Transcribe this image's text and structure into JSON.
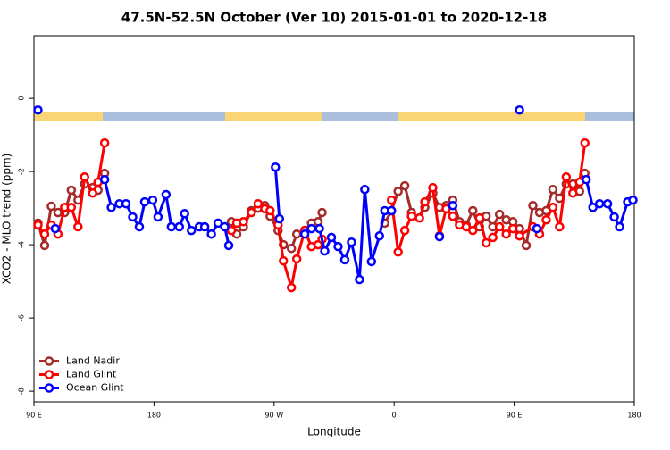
{
  "chart_data": {
    "type": "line",
    "title": "47.5N-52.5N October (Ver 10)   2015-01-01 to 2020-12-18",
    "x_label": "Longitude",
    "y_label": "XCO2 - MLO trend (ppm)",
    "xlim": [
      90,
      540
    ],
    "ylim": [
      1.71,
      -8.29
    ],
    "xticks": [
      {
        "value": 90,
        "label": "90 E"
      },
      180,
      {
        "value": 270,
        "label": "90 W"
      },
      {
        "value": 360,
        "label": "0"
      },
      {
        "value": 450,
        "label": "90 E"
      },
      {
        "value": 540,
        "label": "180"
      }
    ],
    "yticks": [
      0,
      -2,
      -4,
      -6,
      -8
    ],
    "legend": "bottomleft",
    "series": [
      {
        "name": "Land Nadir",
        "color": "#a52a2a",
        "x": [
          93,
          98,
          103,
          108,
          113,
          118,
          123,
          128,
          134,
          138,
          143,
          null,
          238,
          242,
          247,
          253,
          258,
          263,
          267,
          273,
          277,
          283,
          287,
          293,
          298,
          303,
          306,
          null,
          353,
          358,
          363,
          368,
          373,
          379,
          383,
          389,
          394,
          399,
          404,
          409,
          414,
          419,
          424,
          429,
          434,
          439,
          444,
          449,
          454,
          459,
          464,
          469,
          474,
          479,
          484,
          489,
          494,
          499,
          503
        ],
        "values": [
          -3.41,
          -4.02,
          -2.95,
          -3.12,
          -3.12,
          -2.51,
          -2.78,
          -2.34,
          -2.44,
          -2.51,
          -2.05,
          null,
          -3.37,
          -3.71,
          -3.51,
          -3.07,
          -3.0,
          -2.93,
          -3.22,
          -3.61,
          -4.0,
          -4.1,
          -3.71,
          -3.61,
          -3.41,
          -3.37,
          -3.12,
          null,
          -3.41,
          -3.07,
          -2.54,
          -2.39,
          -3.12,
          -3.27,
          -2.98,
          -2.59,
          -2.98,
          -2.93,
          -2.78,
          -3.37,
          -3.46,
          -3.07,
          -3.51,
          -3.22,
          -3.51,
          -3.17,
          -3.32,
          -3.37,
          -3.56,
          -4.02,
          -2.93,
          -3.12,
          -3.07,
          -2.49,
          -2.73,
          -2.34,
          -2.34,
          -2.54,
          -2.05
        ]
      },
      {
        "name": "Land Glint",
        "color": "#ff0000",
        "x": [
          93,
          98,
          103,
          108,
          113,
          118,
          123,
          128,
          134,
          138,
          143,
          null,
          238,
          242,
          247,
          253,
          258,
          263,
          267,
          273,
          277,
          283,
          287,
          293,
          298,
          303,
          306,
          null,
          358,
          363,
          368,
          373,
          379,
          383,
          389,
          394,
          399,
          404,
          409,
          414,
          419,
          424,
          429,
          434,
          439,
          444,
          449,
          454,
          464,
          469,
          474,
          479,
          484,
          489,
          494,
          499,
          503
        ],
        "values": [
          -3.46,
          -3.71,
          -3.46,
          -3.71,
          -2.98,
          -2.98,
          -3.51,
          -2.15,
          -2.59,
          -2.29,
          -1.22,
          null,
          -3.61,
          -3.41,
          -3.37,
          -3.12,
          -2.88,
          -3.02,
          -3.07,
          -3.46,
          -4.44,
          -5.17,
          -4.39,
          -3.61,
          -4.05,
          -4.0,
          -3.85,
          null,
          -2.78,
          -4.2,
          -3.61,
          -3.22,
          -3.27,
          -2.83,
          -2.44,
          -3.76,
          -3.02,
          -3.22,
          -3.46,
          -3.51,
          -3.61,
          -3.27,
          -3.95,
          -3.8,
          -3.51,
          -3.71,
          -3.56,
          -3.76,
          -3.51,
          -3.71,
          -3.32,
          -2.98,
          -3.51,
          -2.15,
          -2.59,
          -2.29,
          -1.22
        ]
      },
      {
        "name": "Ocean Glint",
        "color": "#0000ff",
        "x": [
          93,
          null,
          106,
          null,
          143,
          148,
          154,
          159,
          164,
          169,
          173,
          179,
          183,
          189,
          193,
          199,
          203,
          208,
          214,
          218,
          223,
          228,
          233,
          236,
          null,
          271,
          274,
          null,
          293,
          298,
          304,
          308,
          313,
          318,
          323,
          328,
          334,
          338,
          343,
          349,
          353,
          358,
          null,
          394,
          null,
          404,
          null,
          454,
          null,
          467,
          null,
          504,
          509,
          514,
          520,
          525,
          529,
          535,
          539
        ],
        "values": [
          -0.32,
          null,
          -3.56,
          null,
          -2.22,
          -2.98,
          -2.88,
          -2.88,
          -3.24,
          -3.51,
          -2.83,
          -2.78,
          -3.24,
          -2.63,
          -3.51,
          -3.51,
          -3.15,
          -3.61,
          -3.51,
          -3.51,
          -3.71,
          -3.41,
          -3.51,
          -4.02,
          null,
          -1.88,
          -3.29,
          null,
          -3.71,
          -3.56,
          -3.56,
          -4.17,
          -3.8,
          -4.05,
          -4.41,
          -3.93,
          -4.95,
          -2.49,
          -4.46,
          -3.76,
          -3.07,
          -3.07,
          null,
          -3.78,
          null,
          -2.93,
          null,
          -0.32,
          null,
          -3.56,
          null,
          -2.22,
          -2.98,
          -2.88,
          -2.88,
          -3.24,
          -3.51,
          -2.83,
          -2.78
        ]
      }
    ]
  }
}
